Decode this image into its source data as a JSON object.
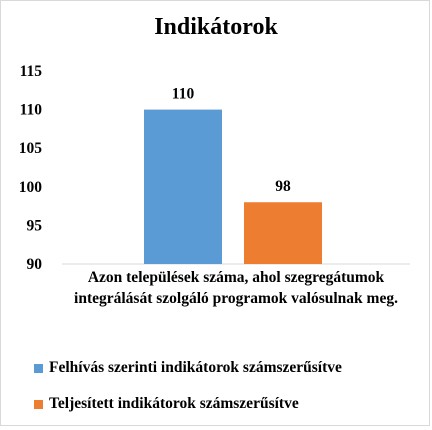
{
  "chart_data": {
    "type": "bar",
    "title": "Indikátorok",
    "categories": [
      "Azon települések száma, ahol szegregátumok integrálását szolgáló programok valósulnak meg."
    ],
    "series": [
      {
        "name": "Felhívás szerinti indikátorok számszerűsítve",
        "values": [
          110
        ],
        "color": "#5b9bd5"
      },
      {
        "name": "Teljesített indikátorok számszerűsítve",
        "values": [
          98
        ],
        "color": "#ed7d31"
      }
    ],
    "ylim": [
      90,
      115
    ],
    "yticks": [
      90,
      95,
      100,
      105,
      110,
      115
    ],
    "grid": false,
    "legend_position": "bottom-left",
    "xlabel": "",
    "ylabel": ""
  }
}
